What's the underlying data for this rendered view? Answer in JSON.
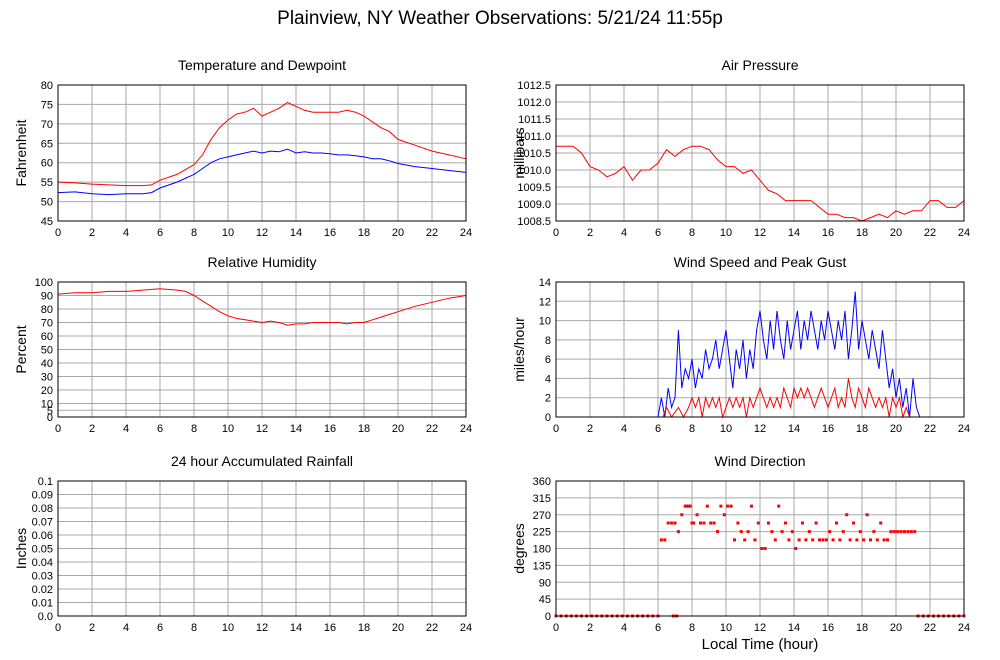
{
  "title": "Plainview, NY Weather Observations: 5/21/24 11:55p",
  "x_axis_label": "Local Time (hour)",
  "colors": {
    "primary": "#ff0000",
    "secondary": "#0000ff",
    "grid": "#a8a8a8"
  },
  "chart_data": [
    {
      "type": "line",
      "title": "Temperature and Dewpoint",
      "ylabel": "Fahrenheit",
      "xlim": [
        0,
        24
      ],
      "ylim": [
        45,
        80
      ],
      "x_ticks": [
        0,
        2,
        4,
        6,
        8,
        10,
        12,
        14,
        16,
        18,
        20,
        22,
        24
      ],
      "y_ticks": [
        "45",
        "50",
        "55",
        "60",
        "65",
        "70",
        "75",
        "80"
      ],
      "grid": true,
      "series": [
        {
          "color": "#ff0000",
          "x": [
            0,
            1,
            2,
            3,
            4,
            5,
            5.5,
            6,
            7,
            8,
            8.5,
            9,
            9.5,
            10,
            10.5,
            11,
            11.5,
            12,
            12.5,
            13,
            13.5,
            14,
            14.5,
            15,
            15.5,
            16,
            16.5,
            17,
            17.5,
            18,
            18.5,
            19,
            19.5,
            20,
            21,
            22,
            23,
            24
          ],
          "y": [
            55,
            54.8,
            54.5,
            54.3,
            54.1,
            54.1,
            54.3,
            55.5,
            57,
            59.5,
            62,
            66,
            69,
            71,
            72.5,
            73,
            74,
            72,
            73,
            74,
            75.5,
            74.5,
            73.5,
            73,
            73,
            73,
            73,
            73.5,
            73,
            72,
            70.5,
            69,
            68,
            66,
            64.5,
            63,
            62,
            61
          ]
        },
        {
          "color": "#0000ff",
          "x": [
            0,
            1,
            2,
            3,
            4,
            5,
            5.5,
            6,
            7,
            8,
            8.5,
            9,
            9.5,
            10,
            10.5,
            11,
            11.5,
            12,
            12.5,
            13,
            13.5,
            14,
            14.5,
            15,
            15.5,
            16,
            16.5,
            17,
            17.5,
            18,
            18.5,
            19,
            19.5,
            20,
            21,
            22,
            23,
            24
          ],
          "y": [
            52.3,
            52.5,
            52,
            51.8,
            52,
            52,
            52.3,
            53.5,
            55,
            57,
            58.5,
            60,
            61,
            61.5,
            62,
            62.5,
            63,
            62.5,
            63,
            62.8,
            63.5,
            62.5,
            62.8,
            62.5,
            62.5,
            62.3,
            62,
            62,
            61.8,
            61.5,
            61,
            61,
            60.5,
            59.8,
            59,
            58.5,
            58,
            57.5
          ]
        }
      ]
    },
    {
      "type": "line",
      "title": "Air Pressure",
      "ylabel": "millibars",
      "xlim": [
        0,
        24
      ],
      "ylim": [
        1008.5,
        1012.5
      ],
      "x_ticks": [
        0,
        2,
        4,
        6,
        8,
        10,
        12,
        14,
        16,
        18,
        20,
        22,
        24
      ],
      "y_ticks": [
        "1008.5",
        "1009.0",
        "1009.5",
        "1010.0",
        "1010.5",
        "1011.0",
        "1011.5",
        "1012.0",
        "1012.5"
      ],
      "grid": true,
      "series": [
        {
          "color": "#ff0000",
          "x": [
            0,
            1,
            1.5,
            2,
            2.5,
            3,
            3.5,
            4,
            4.5,
            5,
            5.5,
            6,
            6.5,
            7,
            7.5,
            8,
            8.5,
            9,
            9.5,
            10,
            10.5,
            11,
            11.5,
            12,
            12.5,
            13,
            13.5,
            14,
            14.5,
            15,
            15.5,
            16,
            16.5,
            17,
            17.5,
            18,
            18.5,
            19,
            19.5,
            20,
            20.5,
            21,
            21.5,
            22,
            22.5,
            23,
            23.5,
            24
          ],
          "y": [
            1010.7,
            1010.7,
            1010.5,
            1010.1,
            1010,
            1009.8,
            1009.9,
            1010.1,
            1009.7,
            1010,
            1010,
            1010.2,
            1010.6,
            1010.4,
            1010.6,
            1010.7,
            1010.7,
            1010.6,
            1010.3,
            1010.1,
            1010.1,
            1009.9,
            1010,
            1009.7,
            1009.4,
            1009.3,
            1009.1,
            1009.1,
            1009.1,
            1009.1,
            1008.9,
            1008.7,
            1008.7,
            1008.6,
            1008.6,
            1008.5,
            1008.6,
            1008.7,
            1008.6,
            1008.8,
            1008.7,
            1008.8,
            1008.8,
            1009.1,
            1009.1,
            1008.9,
            1008.9,
            1009.1
          ]
        }
      ]
    },
    {
      "type": "line",
      "title": "Relative Humidity",
      "ylabel": "Percent",
      "xlim": [
        0,
        24
      ],
      "ylim": [
        0,
        100
      ],
      "x_ticks": [
        0,
        2,
        4,
        6,
        8,
        10,
        12,
        14,
        16,
        18,
        20,
        22,
        24
      ],
      "y_ticks": [
        "0",
        "5",
        "10",
        "20",
        "30",
        "40",
        "50",
        "60",
        "70",
        "80",
        "90",
        "100"
      ],
      "grid": true,
      "series": [
        {
          "color": "#ff0000",
          "x": [
            0,
            1,
            2,
            3,
            4,
            5,
            6,
            7,
            7.5,
            8,
            8.5,
            9,
            9.5,
            10,
            10.5,
            11,
            11.5,
            12,
            12.5,
            13,
            13.5,
            14,
            14.5,
            15,
            15.5,
            16,
            16.5,
            17,
            17.5,
            18,
            18.5,
            19,
            19.5,
            20,
            21,
            22,
            23,
            24
          ],
          "y": [
            91,
            92,
            92,
            93,
            93,
            94,
            95,
            94,
            93,
            90,
            86,
            82,
            78,
            75,
            73,
            72,
            71,
            70,
            71,
            70,
            68,
            69,
            69,
            70,
            70,
            70,
            70,
            69,
            70,
            70,
            72,
            74,
            76,
            78,
            82,
            85,
            88,
            90
          ]
        }
      ]
    },
    {
      "type": "line",
      "title": "Wind Speed and Peak Gust",
      "ylabel": "miles/hour",
      "xlim": [
        0,
        24
      ],
      "ylim": [
        0,
        14
      ],
      "x_ticks": [
        0,
        2,
        4,
        6,
        8,
        10,
        12,
        14,
        16,
        18,
        20,
        22,
        24
      ],
      "y_ticks": [
        "0",
        "2",
        "4",
        "6",
        "8",
        "10",
        "12",
        "14"
      ],
      "grid": true,
      "series": [
        {
          "color": "#0000ff",
          "x": [
            0,
            6,
            6.2,
            6.4,
            6.6,
            6.8,
            7,
            7.2,
            7.4,
            7.6,
            7.8,
            8,
            8.2,
            8.4,
            8.6,
            8.8,
            9,
            9.2,
            9.4,
            9.6,
            9.8,
            10,
            10.2,
            10.4,
            10.6,
            10.8,
            11,
            11.2,
            11.4,
            11.6,
            11.8,
            12,
            12.2,
            12.4,
            12.6,
            12.8,
            13,
            13.2,
            13.4,
            13.6,
            13.8,
            14,
            14.2,
            14.4,
            14.6,
            14.8,
            15,
            15.2,
            15.4,
            15.6,
            15.8,
            16,
            16.2,
            16.4,
            16.6,
            16.8,
            17,
            17.2,
            17.4,
            17.6,
            17.8,
            18,
            18.2,
            18.4,
            18.6,
            18.8,
            19,
            19.2,
            19.4,
            19.6,
            19.8,
            20,
            20.2,
            20.4,
            20.6,
            20.8,
            21,
            21.2,
            21.4,
            24
          ],
          "y": [
            0,
            0,
            2,
            0,
            3,
            1,
            2,
            9,
            3,
            5,
            4,
            6,
            3,
            5,
            4,
            7,
            5,
            6,
            8,
            5,
            7,
            9,
            6,
            3,
            7,
            5,
            8,
            4,
            7,
            5,
            9,
            11,
            8,
            6,
            10,
            7,
            11,
            8,
            6,
            10,
            7,
            9,
            11,
            7,
            10,
            8,
            11,
            9,
            7,
            10,
            8,
            11,
            9,
            7,
            10,
            8,
            11,
            6,
            9,
            13,
            7,
            10,
            8,
            6,
            9,
            7,
            5,
            9,
            6,
            3,
            5,
            2,
            4,
            1,
            3,
            0,
            4,
            1,
            0,
            0
          ]
        },
        {
          "color": "#ff0000",
          "x": [
            0,
            6,
            6.3,
            6.5,
            6.8,
            7.2,
            7.5,
            7.8,
            8,
            8.2,
            8.4,
            8.6,
            8.8,
            9,
            9.2,
            9.4,
            9.6,
            9.8,
            10,
            10.2,
            10.4,
            10.6,
            10.8,
            11,
            11.2,
            11.4,
            11.6,
            11.8,
            12,
            12.2,
            12.4,
            12.6,
            12.8,
            13,
            13.2,
            13.4,
            13.6,
            13.8,
            14,
            14.2,
            14.4,
            14.6,
            14.8,
            15,
            15.2,
            15.4,
            15.6,
            15.8,
            16,
            16.2,
            16.4,
            16.6,
            16.8,
            17,
            17.2,
            17.4,
            17.6,
            17.8,
            18,
            18.2,
            18.4,
            18.6,
            18.8,
            19,
            19.2,
            19.4,
            19.6,
            19.8,
            20,
            20.2,
            20.4,
            20.6,
            20.8,
            21,
            24
          ],
          "y": [
            0,
            0,
            0,
            1,
            0,
            1,
            0,
            1,
            2,
            1,
            2,
            0,
            2,
            1,
            2,
            1,
            2,
            0,
            1,
            2,
            1,
            2,
            1,
            2,
            0,
            2,
            1,
            2,
            3,
            2,
            1,
            2,
            1,
            2,
            1,
            3,
            2,
            1,
            3,
            2,
            3,
            2,
            3,
            2,
            1,
            2,
            3,
            2,
            1,
            2,
            3,
            1,
            2,
            1,
            4,
            2,
            1,
            3,
            2,
            1,
            3,
            2,
            1,
            2,
            1,
            2,
            0,
            2,
            1,
            2,
            0,
            1,
            0,
            0,
            0
          ]
        }
      ]
    },
    {
      "type": "line",
      "title": "24 hour Accumulated Rainfall",
      "ylabel": "Inches",
      "xlim": [
        0,
        24
      ],
      "ylim": [
        0,
        0.1
      ],
      "x_ticks": [
        0,
        2,
        4,
        6,
        8,
        10,
        12,
        14,
        16,
        18,
        20,
        22,
        24
      ],
      "y_ticks": [
        "0.0",
        "0.01",
        "0.02",
        "0.03",
        "0.04",
        "0.05",
        "0.06",
        "0.07",
        "0.08",
        "0.09",
        "0.1"
      ],
      "grid": true,
      "series": [
        {
          "color": "#ff0000",
          "x": [
            0,
            24
          ],
          "y": [
            0,
            0
          ]
        }
      ]
    },
    {
      "type": "scatter",
      "title": "Wind Direction",
      "ylabel": "degrees",
      "xlim": [
        0,
        24
      ],
      "ylim": [
        0,
        360
      ],
      "x_ticks": [
        0,
        2,
        4,
        6,
        8,
        10,
        12,
        14,
        16,
        18,
        20,
        22,
        24
      ],
      "y_ticks": [
        "0",
        "45",
        "90",
        "135",
        "180",
        "225",
        "270",
        "315",
        "360"
      ],
      "grid": true,
      "series": [
        {
          "color": "#ff0000",
          "x": [
            6.2,
            6.4,
            6.6,
            6.8,
            7,
            7.2,
            7.4,
            7.6,
            7.7,
            7.8,
            7.9,
            8,
            8.1,
            8.3,
            8.5,
            8.7,
            8.9,
            9.1,
            9.3,
            9.5,
            9.7,
            9.9,
            10.1,
            10.3,
            10.5,
            10.7,
            10.9,
            11.1,
            11.3,
            11.5,
            11.7,
            11.9,
            12.1,
            12.3,
            12.5,
            12.7,
            12.9,
            13.1,
            13.3,
            13.5,
            13.7,
            13.9,
            14.1,
            14.3,
            14.5,
            14.7,
            14.9,
            15.1,
            15.3,
            15.5,
            15.7,
            15.9,
            16.1,
            16.3,
            16.5,
            16.7,
            16.9,
            17.1,
            17.3,
            17.5,
            17.7,
            17.9,
            18.1,
            18.3,
            18.5,
            18.7,
            18.9,
            19.1,
            19.3,
            19.5,
            19.7,
            19.9,
            20.1,
            20.3,
            20.5,
            20.7,
            20.9,
            21.1
          ],
          "y": [
            203,
            203,
            248,
            248,
            248,
            225,
            270,
            293,
            293,
            293,
            293,
            248,
            248,
            270,
            248,
            248,
            293,
            248,
            248,
            225,
            293,
            270,
            293,
            293,
            203,
            248,
            225,
            203,
            225,
            293,
            203,
            248,
            180,
            180,
            248,
            225,
            203,
            293,
            225,
            248,
            203,
            225,
            180,
            203,
            248,
            203,
            225,
            203,
            248,
            203,
            203,
            203,
            225,
            203,
            248,
            203,
            225,
            270,
            203,
            248,
            203,
            225,
            203,
            270,
            203,
            225,
            203,
            248,
            203,
            203,
            225,
            225,
            225,
            225,
            225,
            225,
            225,
            225
          ]
        },
        {
          "color": "#ff0000",
          "x": [
            0,
            0.3,
            0.6,
            0.9,
            1.2,
            1.5,
            1.8,
            2.1,
            2.4,
            2.7,
            3,
            3.3,
            3.6,
            3.9,
            4.2,
            4.5,
            4.8,
            5.1,
            5.4,
            5.7,
            6,
            6.9,
            7.1,
            21.3,
            21.6,
            21.9,
            22.2,
            22.5,
            22.8,
            23.1,
            23.4,
            23.7,
            24
          ],
          "y": [
            0,
            0,
            0,
            0,
            0,
            0,
            0,
            0,
            0,
            0,
            0,
            0,
            0,
            0,
            0,
            0,
            0,
            0,
            0,
            0,
            0,
            0,
            0,
            0,
            0,
            0,
            0,
            0,
            0,
            0,
            0,
            0,
            0
          ]
        }
      ]
    }
  ]
}
